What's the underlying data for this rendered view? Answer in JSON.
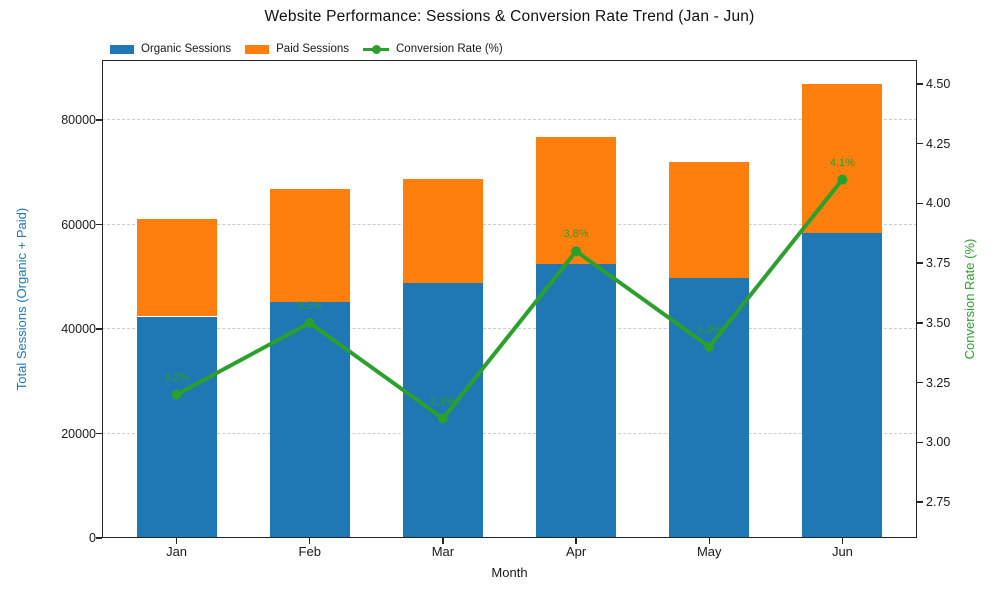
{
  "chart_data": {
    "type": "combo-stacked-bar-line",
    "title": "Website Performance: Sessions & Conversion Rate Trend (Jan - Jun)",
    "xlabel": "Month",
    "categories": [
      "Jan",
      "Feb",
      "Mar",
      "Apr",
      "May",
      "Jun"
    ],
    "series": [
      {
        "name": "Organic Sessions",
        "type": "bar",
        "stack": "sessions",
        "color": "#1f77b4",
        "values": [
          42400,
          45100,
          48900,
          52500,
          49800,
          58300
        ]
      },
      {
        "name": "Paid Sessions",
        "type": "bar",
        "stack": "sessions",
        "color": "#ff7f0e",
        "values": [
          18600,
          21700,
          19800,
          24200,
          22200,
          28600
        ]
      },
      {
        "name": "Conversion Rate (%)",
        "type": "line",
        "axis": "right",
        "color": "#2ca02c",
        "values": [
          3.2,
          3.5,
          3.1,
          3.8,
          3.4,
          4.1
        ],
        "point_labels": [
          "3.2%",
          "3.5%",
          "3.1%",
          "3.8%",
          "3.4%",
          "4.1%"
        ]
      }
    ],
    "left_axis": {
      "label": "Total Sessions (Organic + Paid)",
      "color": "#1f77b4",
      "range": [
        0,
        91500
      ],
      "ticks": [
        0,
        20000,
        40000,
        60000,
        80000
      ],
      "tick_labels": [
        "0",
        "20000",
        "40000",
        "60000",
        "80000"
      ]
    },
    "right_axis": {
      "label": "Conversion Rate (%)",
      "color": "#2ca02c",
      "range": [
        2.6,
        4.6
      ],
      "ticks": [
        2.75,
        3.0,
        3.25,
        3.5,
        3.75,
        4.0,
        4.25,
        4.5
      ],
      "tick_labels": [
        "2.75",
        "3.00",
        "3.25",
        "3.50",
        "3.75",
        "4.00",
        "4.25",
        "4.50"
      ]
    },
    "grid": {
      "axis": "y",
      "style": "dashed",
      "color": "#cccccc"
    },
    "legend": {
      "position": "top-left",
      "frame": false,
      "entries": [
        "Organic Sessions",
        "Paid Sessions",
        "Conversion Rate (%)"
      ]
    }
  }
}
